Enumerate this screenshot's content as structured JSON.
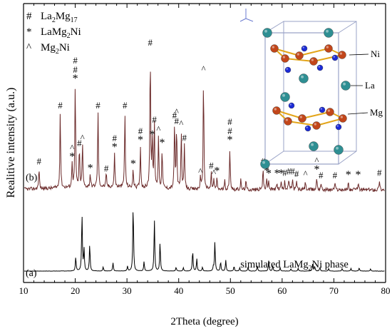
{
  "chart_data": {
    "type": "line",
    "xlabel": "2Theta (degree)",
    "ylabel": "Realitive intensity (a.u.)",
    "xlim": [
      10,
      80
    ],
    "xticks": [
      10,
      20,
      30,
      40,
      50,
      60,
      70,
      80
    ],
    "grid": false,
    "legend_position": "top-left",
    "legend": [
      {
        "symbol": "#",
        "text": "La2Mg17",
        "formula": [
          "La",
          "2",
          "Mg",
          "17"
        ]
      },
      {
        "symbol": "*",
        "text": "LaMg2Ni",
        "formula": [
          "LaMg",
          "2",
          "Ni",
          ""
        ]
      },
      {
        "symbol": "^",
        "text": "Mg2Ni",
        "formula": [
          "Mg",
          "2",
          "Ni",
          ""
        ]
      }
    ],
    "series": [
      {
        "name": "(b)",
        "peaks": [
          {
            "x": 13.0,
            "h": 0.15,
            "marks": [
              "#"
            ]
          },
          {
            "x": 17.1,
            "h": 0.55,
            "marks": [
              "#"
            ]
          },
          {
            "x": 19.4,
            "h": 0.18,
            "marks": [
              "^",
              "*"
            ]
          },
          {
            "x": 20.0,
            "h": 0.74,
            "marks": [
              "#",
              "#",
              "*"
            ]
          },
          {
            "x": 20.8,
            "h": 0.28,
            "marks": [
              "#"
            ]
          },
          {
            "x": 21.4,
            "h": 0.32,
            "marks": [
              "^"
            ]
          },
          {
            "x": 22.9,
            "h": 0.1,
            "marks": [
              "*"
            ]
          },
          {
            "x": 24.4,
            "h": 0.55,
            "marks": [
              "#"
            ]
          },
          {
            "x": 26.0,
            "h": 0.1,
            "marks": [
              "#"
            ]
          },
          {
            "x": 27.6,
            "h": 0.25,
            "marks": [
              "#",
              "*"
            ]
          },
          {
            "x": 29.6,
            "h": 0.55,
            "marks": [
              "#"
            ]
          },
          {
            "x": 31.2,
            "h": 0.13,
            "marks": [
              "*"
            ]
          },
          {
            "x": 32.6,
            "h": 0.3,
            "marks": [
              "#",
              "*"
            ]
          },
          {
            "x": 34.5,
            "h": 1.0,
            "marks": [
              "#"
            ]
          },
          {
            "x": 34.9,
            "h": 0.34,
            "marks": [
              "*"
            ]
          },
          {
            "x": 35.3,
            "h": 0.45,
            "marks": [
              "#"
            ]
          },
          {
            "x": 36.1,
            "h": 0.38,
            "marks": [
              "^"
            ]
          },
          {
            "x": 36.8,
            "h": 0.28,
            "marks": [
              "*"
            ]
          },
          {
            "x": 39.2,
            "h": 0.48,
            "marks": [
              "#"
            ]
          },
          {
            "x": 39.6,
            "h": 0.44,
            "marks": [
              "^",
              "#"
            ]
          },
          {
            "x": 40.5,
            "h": 0.42,
            "marks": [
              "^"
            ]
          },
          {
            "x": 41.1,
            "h": 0.32,
            "marks": [
              "#"
            ]
          },
          {
            "x": 44.2,
            "h": 0.08,
            "marks": [
              "^"
            ]
          },
          {
            "x": 44.8,
            "h": 0.81,
            "marks": [
              "^"
            ]
          },
          {
            "x": 46.3,
            "h": 0.12,
            "marks": [
              "#"
            ]
          },
          {
            "x": 46.8,
            "h": 0.07,
            "marks": [
              "^"
            ]
          },
          {
            "x": 47.4,
            "h": 0.08,
            "marks": [
              "*"
            ]
          },
          {
            "x": 48.9,
            "h": 0.06,
            "marks": []
          },
          {
            "x": 49.9,
            "h": 0.3,
            "marks": [
              "#",
              "#",
              "*"
            ]
          },
          {
            "x": 52.0,
            "h": 0.07,
            "marks": []
          },
          {
            "x": 53.0,
            "h": 0.06,
            "marks": []
          },
          {
            "x": 56.3,
            "h": 0.15,
            "marks": [
              "#"
            ]
          },
          {
            "x": 57.0,
            "h": 0.08,
            "marks": [
              "*"
            ]
          },
          {
            "x": 57.4,
            "h": 0.06,
            "marks": [
              "*"
            ]
          },
          {
            "x": 59.0,
            "h": 0.06,
            "marks": [
              "*"
            ]
          },
          {
            "x": 59.8,
            "h": 0.06,
            "marks": [
              "*"
            ]
          },
          {
            "x": 60.5,
            "h": 0.07,
            "marks": [
              "#"
            ]
          },
          {
            "x": 61.3,
            "h": 0.08,
            "marks": [
              "#"
            ]
          },
          {
            "x": 62.0,
            "h": 0.08,
            "marks": [
              "#"
            ]
          },
          {
            "x": 62.8,
            "h": 0.06,
            "marks": [
              "#"
            ]
          },
          {
            "x": 64.5,
            "h": 0.06,
            "marks": [
              "^"
            ]
          },
          {
            "x": 66.7,
            "h": 0.09,
            "marks": [
              "^",
              "*"
            ]
          },
          {
            "x": 67.5,
            "h": 0.05,
            "marks": [
              "#"
            ]
          },
          {
            "x": 70.2,
            "h": 0.05,
            "marks": [
              "#"
            ]
          },
          {
            "x": 72.8,
            "h": 0.05,
            "marks": [
              "*"
            ]
          },
          {
            "x": 74.7,
            "h": 0.05,
            "marks": [
              "*"
            ]
          },
          {
            "x": 78.8,
            "h": 0.07,
            "marks": [
              "#"
            ]
          }
        ]
      },
      {
        "name": "(a)",
        "annotation": "simulated LaMg2Ni phase",
        "annotation_parts": [
          "simulated LaMg",
          "2",
          "Ni phase"
        ],
        "peaks": [
          {
            "x": 20.1,
            "h": 0.21
          },
          {
            "x": 21.3,
            "h": 0.85
          },
          {
            "x": 21.7,
            "h": 0.32
          },
          {
            "x": 22.8,
            "h": 0.4
          },
          {
            "x": 25.4,
            "h": 0.06
          },
          {
            "x": 27.3,
            "h": 0.12
          },
          {
            "x": 30.1,
            "h": 0.07
          },
          {
            "x": 31.2,
            "h": 1.0
          },
          {
            "x": 33.3,
            "h": 0.14
          },
          {
            "x": 35.3,
            "h": 0.75
          },
          {
            "x": 36.4,
            "h": 0.43
          },
          {
            "x": 39.5,
            "h": 0.06
          },
          {
            "x": 40.9,
            "h": 0.05
          },
          {
            "x": 42.7,
            "h": 0.31
          },
          {
            "x": 43.5,
            "h": 0.18
          },
          {
            "x": 44.6,
            "h": 0.06
          },
          {
            "x": 46.7,
            "h": 0.06
          },
          {
            "x": 47.0,
            "h": 0.43
          },
          {
            "x": 48.1,
            "h": 0.14
          },
          {
            "x": 49.1,
            "h": 0.16
          },
          {
            "x": 50.7,
            "h": 0.07
          },
          {
            "x": 51.8,
            "h": 0.05
          },
          {
            "x": 53.4,
            "h": 0.06
          },
          {
            "x": 55.2,
            "h": 0.08
          },
          {
            "x": 57.4,
            "h": 0.15
          },
          {
            "x": 58.2,
            "h": 0.08
          },
          {
            "x": 59.6,
            "h": 0.05
          },
          {
            "x": 61.7,
            "h": 0.04
          },
          {
            "x": 63.1,
            "h": 0.04
          },
          {
            "x": 65.9,
            "h": 0.1
          },
          {
            "x": 66.3,
            "h": 0.07
          },
          {
            "x": 67.3,
            "h": 0.06
          },
          {
            "x": 69.0,
            "h": 0.04
          },
          {
            "x": 71.6,
            "h": 0.04
          },
          {
            "x": 73.3,
            "h": 0.04
          },
          {
            "x": 74.9,
            "h": 0.05
          },
          {
            "x": 77.1,
            "h": 0.03
          }
        ]
      }
    ],
    "inset": {
      "type": "crystal-structure",
      "labels": [
        "Ni",
        "La",
        "Mg"
      ],
      "atom_colors": {
        "Ni": "#1c2bd6",
        "La": "#2e8f93",
        "Mg": "#c2461a"
      },
      "bond_color": "#e3a51a",
      "cell_color": "#9aa3c7"
    },
    "colors": {
      "pattern_b": "#6b2a2a",
      "pattern_a": "#000000",
      "axis": "#000000"
    }
  }
}
